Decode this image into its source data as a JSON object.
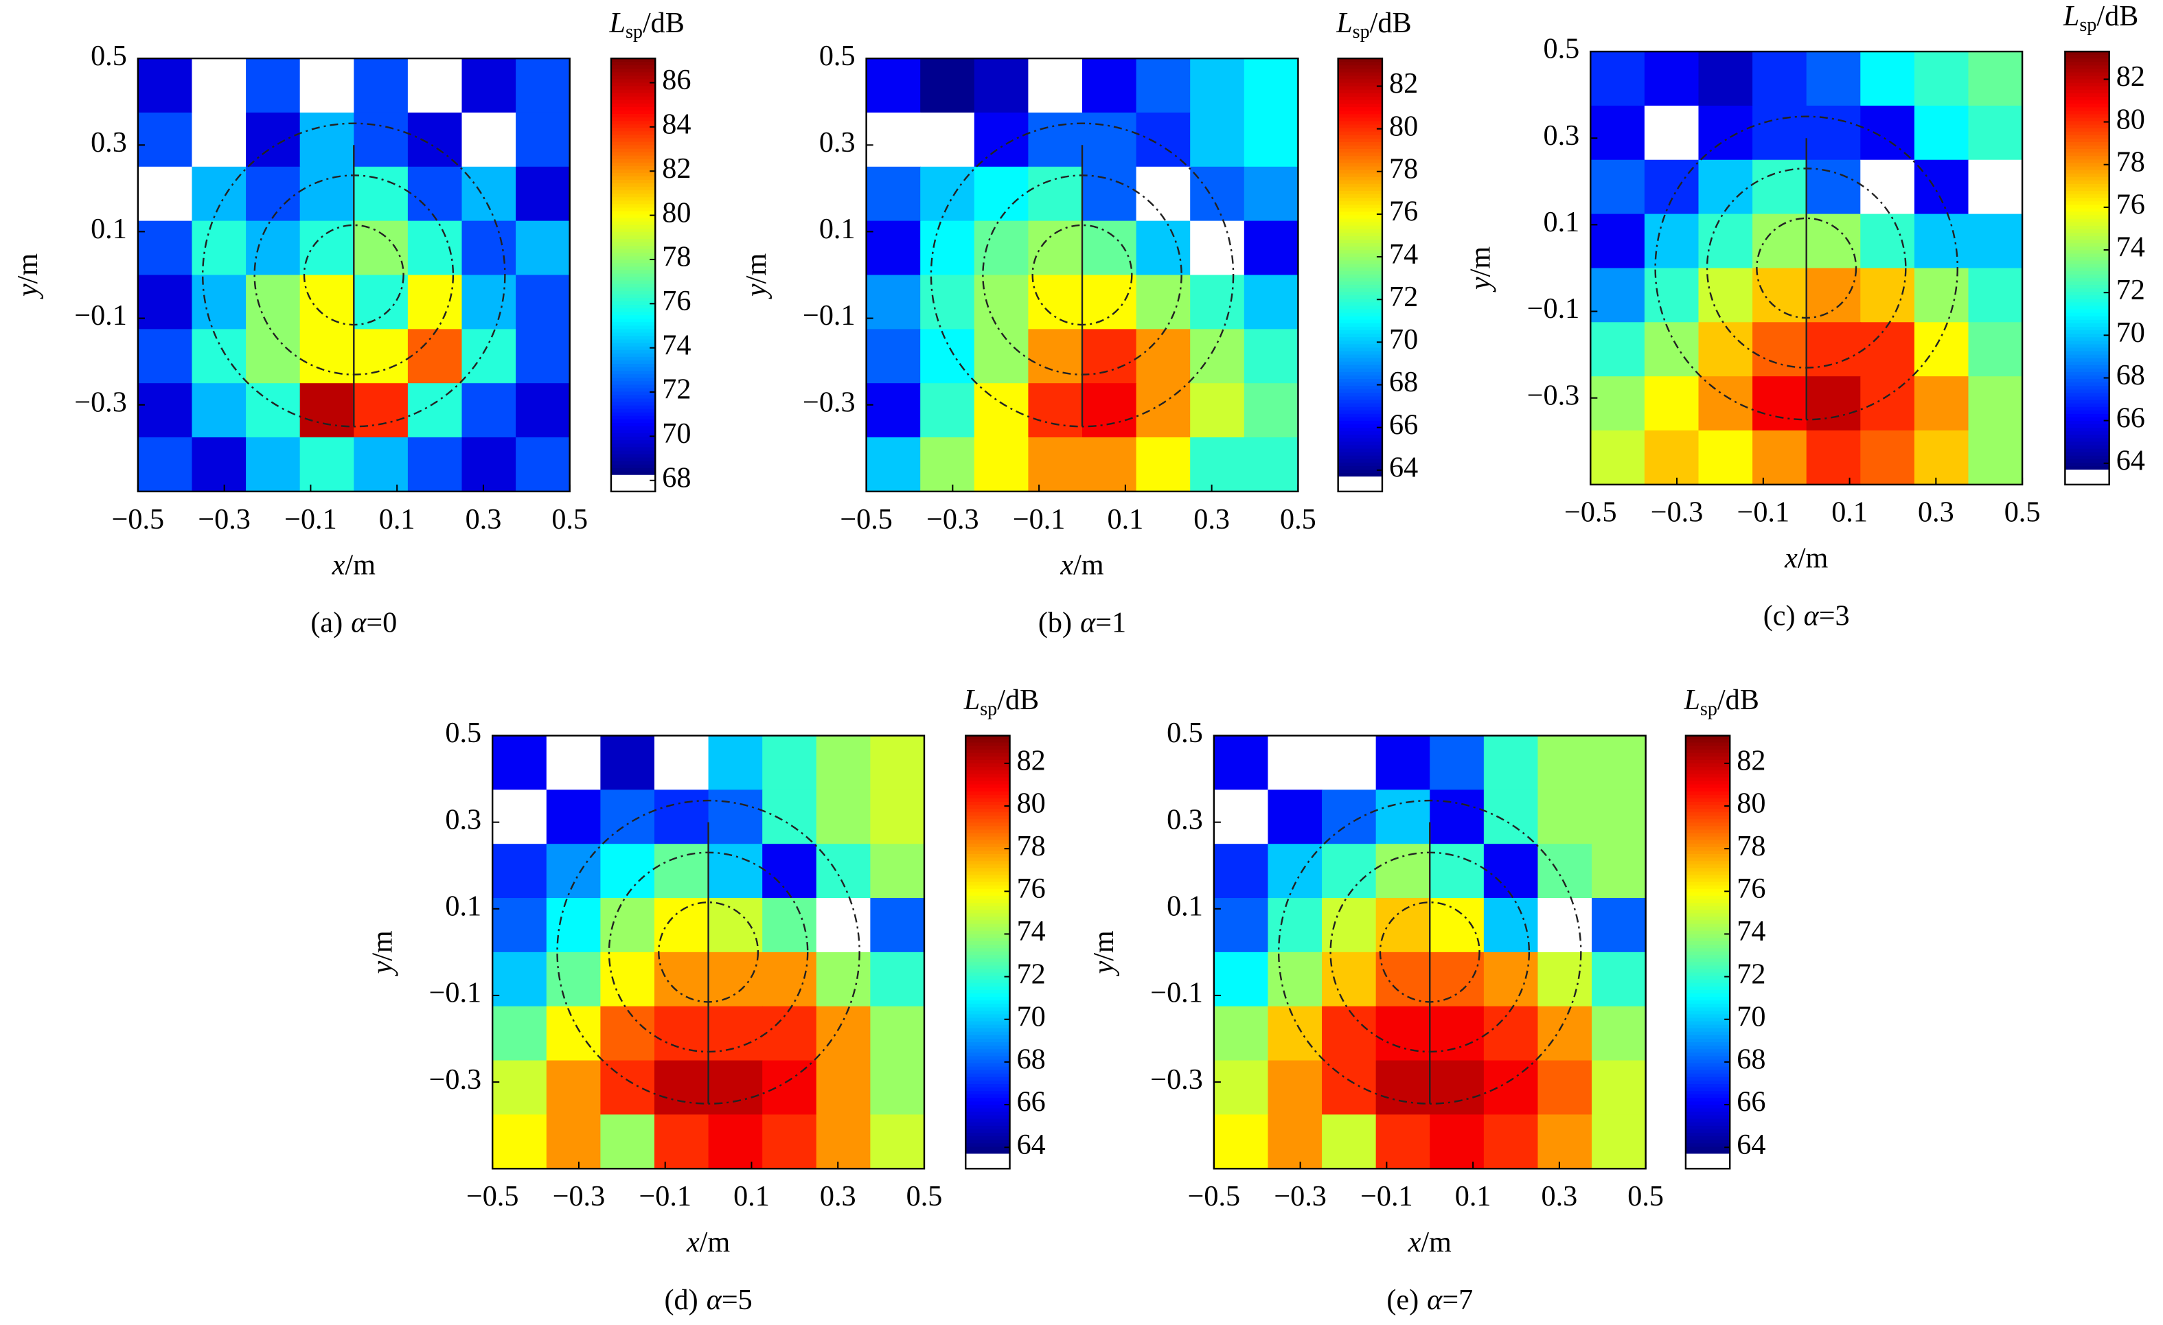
{
  "chart_data": [
    {
      "type": "heatmap",
      "title": [
        "(a)",
        "α",
        "=0"
      ],
      "xlabel": [
        "x",
        "/m"
      ],
      "ylabel": [
        "y",
        "/m"
      ],
      "colorbar_label": [
        "L",
        "sp",
        "/dB"
      ],
      "xlim": [
        -0.5,
        0.5
      ],
      "ylim": [
        -0.5,
        0.5
      ],
      "xticks": [
        {
          "value": -0.5,
          "label": "−0.5"
        },
        {
          "value": -0.3,
          "label": "−0.3"
        },
        {
          "value": -0.1,
          "label": "−0.1"
        },
        0.1,
        0.3,
        0.5
      ],
      "yticks": [
        0.5,
        0.3,
        0.1,
        {
          "value": -0.1,
          "label": "−0.1"
        },
        {
          "value": -0.3,
          "label": "−0.3"
        }
      ],
      "zlim": [
        67.5,
        87.1
      ],
      "white_below": 68.25,
      "zticks": [
        68,
        70,
        72,
        74,
        76,
        78,
        80,
        82,
        84,
        86
      ],
      "colormap": "jet",
      "center": [
        0,
        0
      ],
      "circle_radii": [
        0.115,
        0.23,
        0.35
      ],
      "line_y": [
        -0.35,
        0.3
      ],
      "z": [
        [
          70,
          68,
          72,
          67,
          72,
          68,
          70,
          72
        ],
        [
          72,
          67,
          70,
          74,
          72,
          70,
          67,
          72
        ],
        [
          68,
          74,
          72,
          74,
          76,
          72,
          74,
          70
        ],
        [
          72,
          76,
          74,
          76,
          78,
          76,
          72,
          74
        ],
        [
          70,
          74,
          78,
          80,
          76,
          80,
          74,
          72
        ],
        [
          72,
          76,
          78,
          80,
          80,
          83,
          76,
          72
        ],
        [
          70,
          74,
          76,
          86,
          84,
          76,
          72,
          70
        ],
        [
          72,
          70,
          74,
          76,
          74,
          72,
          70,
          72
        ]
      ]
    },
    {
      "type": "heatmap",
      "title": [
        "(b)",
        "α",
        "=1"
      ],
      "xlabel": [
        "x",
        "/m"
      ],
      "ylabel": [
        "y",
        "/m"
      ],
      "colorbar_label": [
        "L",
        "sp",
        "/dB"
      ],
      "xlim": [
        -0.5,
        0.5
      ],
      "ylim": [
        -0.5,
        0.5
      ],
      "xticks": [
        {
          "value": -0.5,
          "label": "−0.5"
        },
        {
          "value": -0.3,
          "label": "−0.3"
        },
        {
          "value": -0.1,
          "label": "−0.1"
        },
        0.1,
        0.3,
        0.5
      ],
      "yticks": [
        0.5,
        0.3,
        0.1,
        {
          "value": -0.1,
          "label": "−0.1"
        },
        {
          "value": -0.3,
          "label": "−0.3"
        }
      ],
      "zlim": [
        63,
        83.3
      ],
      "white_below": 63.7,
      "zticks": [
        64,
        66,
        68,
        70,
        72,
        74,
        76,
        78,
        80,
        82
      ],
      "colormap": "jet",
      "center": [
        0,
        0
      ],
      "circle_radii": [
        0.115,
        0.23,
        0.35
      ],
      "line_y": [
        -0.35,
        0.3
      ],
      "z": [
        [
          66,
          64,
          65,
          63,
          66,
          68,
          70,
          71
        ],
        [
          63,
          63,
          66,
          68,
          68,
          67,
          70,
          71
        ],
        [
          68,
          70,
          71,
          72,
          68,
          63,
          68,
          69
        ],
        [
          66,
          71,
          73,
          74,
          73,
          70,
          63,
          66
        ],
        [
          69,
          72,
          74,
          76,
          76,
          74,
          72,
          70
        ],
        [
          68,
          71,
          74,
          78,
          80,
          78,
          74,
          72
        ],
        [
          66,
          72,
          76,
          80,
          81,
          78,
          75,
          73
        ],
        [
          70,
          74,
          76,
          78,
          78,
          76,
          72,
          72
        ]
      ]
    },
    {
      "type": "heatmap",
      "title": [
        "(c)",
        "α",
        "=3"
      ],
      "xlabel": [
        "x",
        "/m"
      ],
      "ylabel": [
        "y",
        "/m"
      ],
      "colorbar_label": [
        "L",
        "sp",
        "/dB"
      ],
      "xlim": [
        -0.5,
        0.5
      ],
      "ylim": [
        -0.5,
        0.5
      ],
      "xticks": [
        {
          "value": -0.5,
          "label": "−0.5"
        },
        {
          "value": -0.3,
          "label": "−0.3"
        },
        {
          "value": -0.1,
          "label": "−0.1"
        },
        0.1,
        0.3,
        0.5
      ],
      "yticks": [
        0.5,
        0.3,
        0.1,
        {
          "value": -0.1,
          "label": "−0.1"
        },
        {
          "value": -0.3,
          "label": "−0.3"
        }
      ],
      "zlim": [
        63,
        83.3
      ],
      "white_below": 63.7,
      "zticks": [
        64,
        66,
        68,
        70,
        72,
        74,
        76,
        78,
        80,
        82
      ],
      "colormap": "jet",
      "center": [
        0,
        0
      ],
      "circle_radii": [
        0.115,
        0.23,
        0.35
      ],
      "line_y": [
        -0.35,
        0.3
      ],
      "z": [
        [
          67,
          66,
          65,
          67,
          68,
          71,
          72,
          73
        ],
        [
          66,
          63,
          66,
          67,
          67,
          66,
          71,
          72
        ],
        [
          68,
          67,
          70,
          72,
          68,
          63,
          66,
          63
        ],
        [
          66,
          70,
          72,
          74,
          74,
          72,
          70,
          70
        ],
        [
          69,
          72,
          75,
          77,
          78,
          77,
          74,
          72
        ],
        [
          72,
          74,
          77,
          79,
          80,
          80,
          76,
          73
        ],
        [
          74,
          76,
          78,
          81,
          82,
          80,
          78,
          74
        ],
        [
          75,
          77,
          76,
          78,
          80,
          79,
          77,
          74
        ]
      ]
    },
    {
      "type": "heatmap",
      "title": [
        "(d)",
        "α",
        "=5"
      ],
      "xlabel": [
        "x",
        "/m"
      ],
      "ylabel": [
        "y",
        "/m"
      ],
      "colorbar_label": [
        "L",
        "sp",
        "/dB"
      ],
      "xlim": [
        -0.5,
        0.5
      ],
      "ylim": [
        -0.5,
        0.5
      ],
      "xticks": [
        {
          "value": -0.5,
          "label": "−0.5"
        },
        {
          "value": -0.3,
          "label": "−0.3"
        },
        {
          "value": -0.1,
          "label": "−0.1"
        },
        0.1,
        0.3,
        0.5
      ],
      "yticks": [
        0.5,
        0.3,
        0.1,
        {
          "value": -0.1,
          "label": "−0.1"
        },
        {
          "value": -0.3,
          "label": "−0.3"
        }
      ],
      "zlim": [
        63,
        83.3
      ],
      "white_below": 63.7,
      "zticks": [
        64,
        66,
        68,
        70,
        72,
        74,
        76,
        78,
        80,
        82
      ],
      "colormap": "jet",
      "center": [
        0,
        0
      ],
      "circle_radii": [
        0.115,
        0.23,
        0.35
      ],
      "line_y": [
        -0.35,
        0.3
      ],
      "z": [
        [
          66,
          63,
          65,
          63,
          70,
          72,
          74,
          75
        ],
        [
          63,
          66,
          68,
          67,
          68,
          72,
          74,
          75
        ],
        [
          67,
          69,
          71,
          73,
          70,
          66,
          72,
          74
        ],
        [
          68,
          71,
          74,
          76,
          75,
          73,
          63,
          68
        ],
        [
          70,
          73,
          76,
          78,
          78,
          78,
          74,
          72
        ],
        [
          73,
          76,
          79,
          80,
          80,
          80,
          78,
          74
        ],
        [
          75,
          78,
          80,
          82,
          82,
          81,
          78,
          74
        ],
        [
          76,
          78,
          74,
          80,
          81,
          80,
          78,
          75
        ]
      ]
    },
    {
      "type": "heatmap",
      "title": [
        "(e)",
        "α",
        "=7"
      ],
      "xlabel": [
        "x",
        "/m"
      ],
      "ylabel": [
        "y",
        "/m"
      ],
      "colorbar_label": [
        "L",
        "sp",
        "/dB"
      ],
      "xlim": [
        -0.5,
        0.5
      ],
      "ylim": [
        -0.5,
        0.5
      ],
      "xticks": [
        {
          "value": -0.5,
          "label": "−0.5"
        },
        {
          "value": -0.3,
          "label": "−0.3"
        },
        {
          "value": -0.1,
          "label": "−0.1"
        },
        0.1,
        0.3,
        0.5
      ],
      "yticks": [
        0.5,
        0.3,
        0.1,
        {
          "value": -0.1,
          "label": "−0.1"
        },
        {
          "value": -0.3,
          "label": "−0.3"
        }
      ],
      "zlim": [
        63,
        83.3
      ],
      "white_below": 63.7,
      "zticks": [
        64,
        66,
        68,
        70,
        72,
        74,
        76,
        78,
        80,
        82
      ],
      "colormap": "jet",
      "center": [
        0,
        0
      ],
      "circle_radii": [
        0.115,
        0.23,
        0.35
      ],
      "line_y": [
        -0.35,
        0.3
      ],
      "z": [
        [
          66,
          63,
          63,
          66,
          68,
          72,
          74,
          74
        ],
        [
          63,
          66,
          68,
          70,
          66,
          72,
          74,
          74
        ],
        [
          67,
          70,
          72,
          74,
          72,
          66,
          73,
          74
        ],
        [
          68,
          72,
          75,
          77,
          76,
          70,
          63,
          68
        ],
        [
          71,
          74,
          77,
          79,
          79,
          78,
          75,
          72
        ],
        [
          74,
          77,
          80,
          81,
          81,
          80,
          78,
          74
        ],
        [
          75,
          78,
          80,
          82,
          82,
          81,
          79,
          75
        ],
        [
          76,
          78,
          75,
          80,
          81,
          80,
          78,
          75
        ]
      ]
    }
  ]
}
